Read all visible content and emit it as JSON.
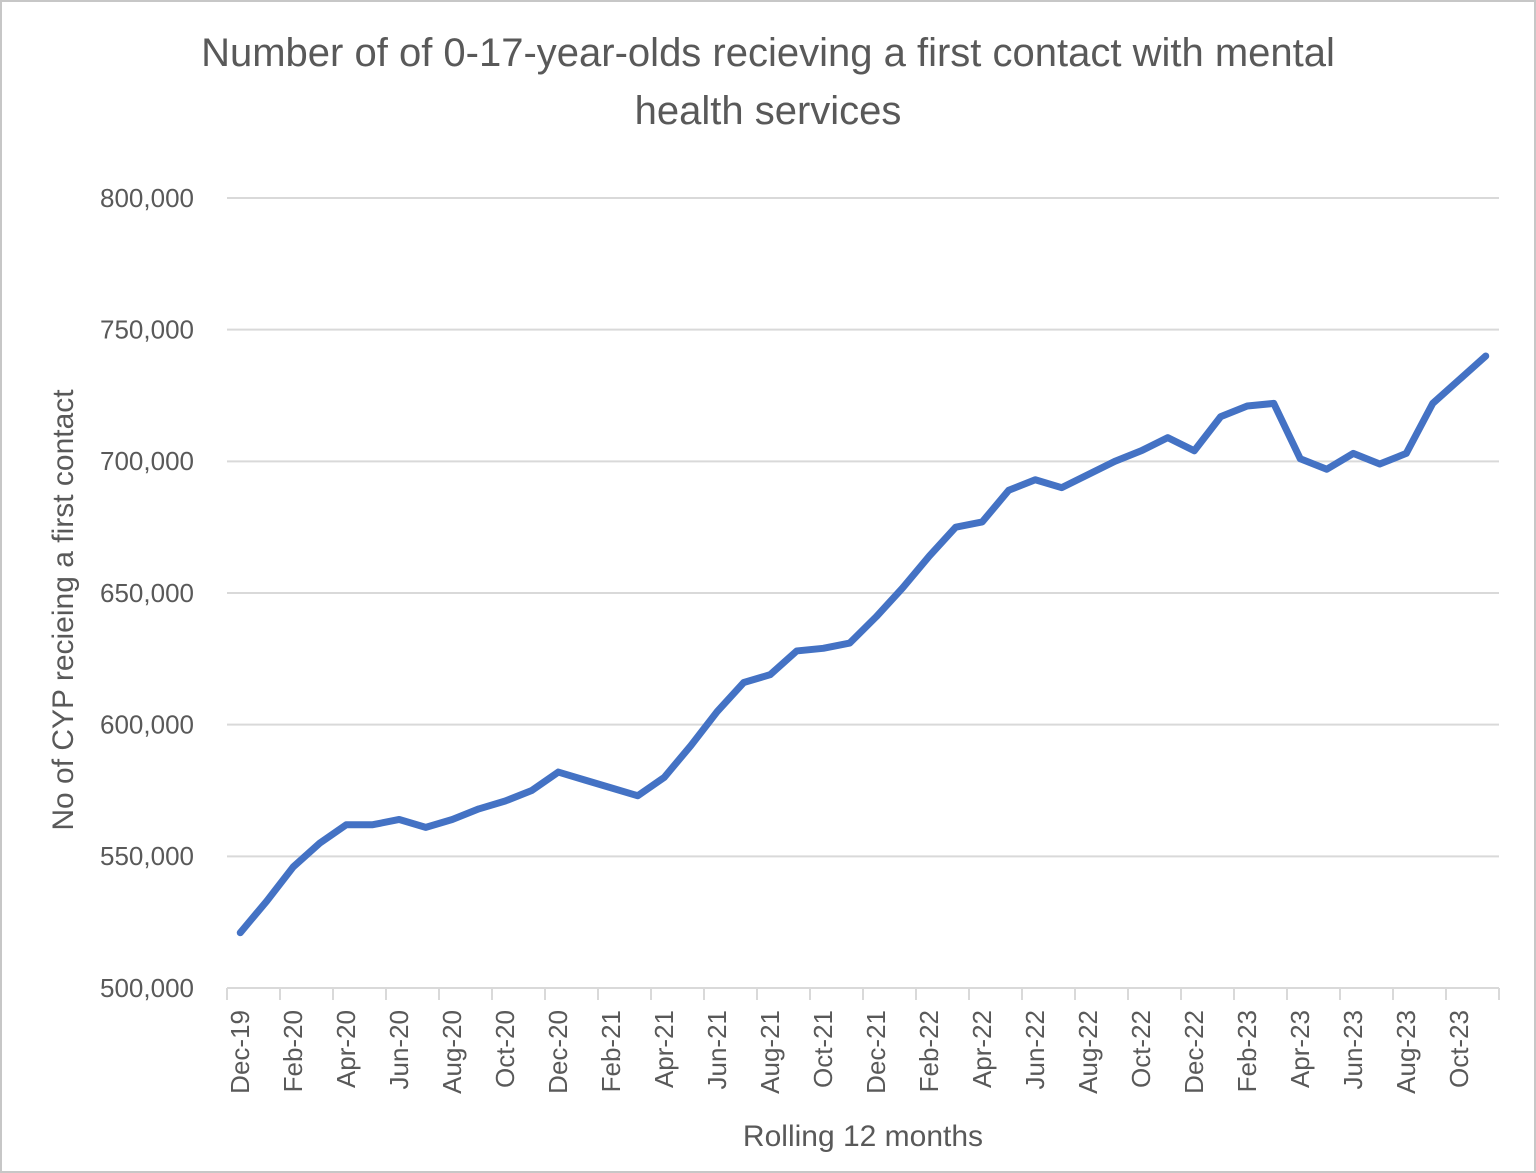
{
  "chart_data": {
    "type": "line",
    "title": "Number of of 0-17-year-olds recieving a first contact with mental health services",
    "xlabel": "Rolling 12 months",
    "ylabel": "No of CYP recieing a first contact",
    "x": [
      "Dec-19",
      "Jan-20",
      "Feb-20",
      "Mar-20",
      "Apr-20",
      "May-20",
      "Jun-20",
      "Jul-20",
      "Aug-20",
      "Sep-20",
      "Oct-20",
      "Nov-20",
      "Dec-20",
      "Jan-21",
      "Feb-21",
      "Mar-21",
      "Apr-21",
      "May-21",
      "Jun-21",
      "Jul-21",
      "Aug-21",
      "Sep-21",
      "Oct-21",
      "Nov-21",
      "Dec-21",
      "Jan-22",
      "Feb-22",
      "Mar-22",
      "Apr-22",
      "May-22",
      "Jun-22",
      "Jul-22",
      "Aug-22",
      "Sep-22",
      "Oct-22",
      "Nov-22",
      "Dec-22",
      "Jan-23",
      "Feb-23",
      "Mar-23",
      "Apr-23",
      "May-23",
      "Jun-23",
      "Jul-23",
      "Aug-23",
      "Sep-23",
      "Oct-23",
      "Nov-23"
    ],
    "values": [
      521000,
      533000,
      546000,
      555000,
      562000,
      562000,
      564000,
      561000,
      564000,
      568000,
      571000,
      575000,
      582000,
      579000,
      576000,
      573000,
      580000,
      592000,
      605000,
      616000,
      619000,
      628000,
      629000,
      631000,
      641000,
      652000,
      664000,
      675000,
      677000,
      689000,
      693000,
      690000,
      695000,
      700000,
      704000,
      709000,
      704000,
      717000,
      721000,
      722000,
      701000,
      697000,
      703000,
      699000,
      703000,
      722000,
      731000,
      740000
    ],
    "x_tick_labels": [
      "Dec-19",
      "Feb-20",
      "Apr-20",
      "Jun-20",
      "Aug-20",
      "Oct-20",
      "Dec-20",
      "Feb-21",
      "Apr-21",
      "Jun-21",
      "Aug-21",
      "Oct-21",
      "Dec-21",
      "Feb-22",
      "Apr-22",
      "Jun-22",
      "Aug-22",
      "Oct-22",
      "Dec-22",
      "Feb-23",
      "Apr-23",
      "Jun-23",
      "Aug-23",
      "Oct-23"
    ],
    "x_tick_label_every": 2,
    "y_tick_labels": [
      "500,000",
      "550,000",
      "600,000",
      "650,000",
      "700,000",
      "750,000",
      "800,000"
    ],
    "ylim": [
      500000,
      800000
    ],
    "ytick_step": 50000,
    "grid": "horizontal",
    "legend": "none",
    "line_color": "#4472c4",
    "gridline_color": "#d9d9d9",
    "text_color": "#595959"
  }
}
